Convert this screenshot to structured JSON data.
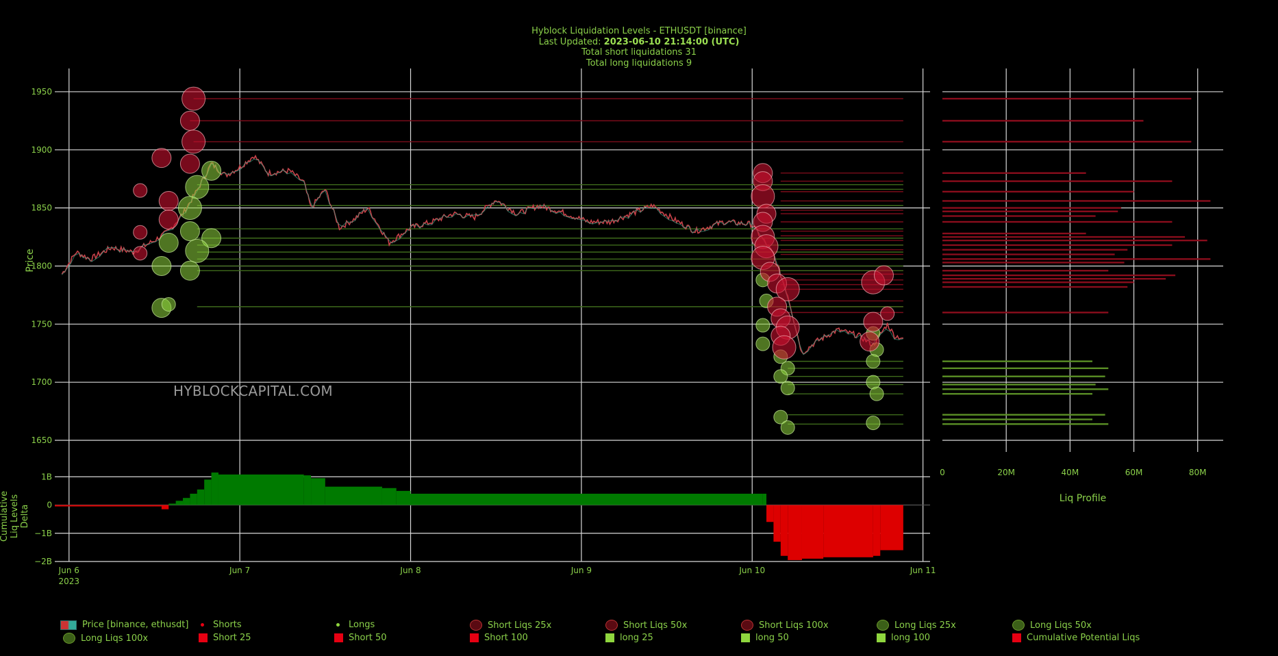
{
  "header": {
    "title": "Hyblock Liquidation Levels - ETHUSDT [binance]",
    "updated_label": "Last Updated:",
    "updated_value": "2023-06-10 21:14:00 (UTC)",
    "short_total": "Total short liquidations 31",
    "long_total": "Total long liquidations 9"
  },
  "watermark": "HYBLOCKCAPITAL.COM",
  "colors": {
    "short": "#c8102e",
    "short_bright": "#e60012",
    "long": "#8fd63e",
    "long_dark": "#4a7a1e",
    "grid": "#d9d9d9",
    "text": "#8bd14a",
    "delta_pos": "#007a00",
    "delta_neg": "#dd0000"
  },
  "chart_data": [
    {
      "type": "line",
      "name": "price",
      "ylabel": "Price",
      "ylim": [
        1640,
        1970
      ],
      "yticks": [
        1650,
        1700,
        1750,
        1800,
        1850,
        1900,
        1950
      ],
      "xlim": [
        "2023-06-05 22:00",
        "2023-06-11 01:00"
      ],
      "xticks": [
        "Jun 6",
        "Jun 7",
        "Jun 8",
        "Jun 9",
        "Jun 10",
        "Jun 11"
      ],
      "xtick_year": "2023",
      "price_path": [
        [
          "2023-06-05 23:00",
          1793
        ],
        [
          "2023-06-06 01:00",
          1812
        ],
        [
          "2023-06-06 03:00",
          1806
        ],
        [
          "2023-06-06 06:00",
          1816
        ],
        [
          "2023-06-06 09:00",
          1812
        ],
        [
          "2023-06-06 12:00",
          1822
        ],
        [
          "2023-06-06 14:00",
          1830
        ],
        [
          "2023-06-06 16:00",
          1845
        ],
        [
          "2023-06-06 18:00",
          1865
        ],
        [
          "2023-06-06 20:00",
          1888
        ],
        [
          "2023-06-06 22:00",
          1878
        ],
        [
          "2023-06-07 00:00",
          1885
        ],
        [
          "2023-06-07 02:00",
          1895
        ],
        [
          "2023-06-07 04:00",
          1880
        ],
        [
          "2023-06-07 07:00",
          1882
        ],
        [
          "2023-06-07 09:00",
          1872
        ],
        [
          "2023-06-07 10:00",
          1850
        ],
        [
          "2023-06-07 12:00",
          1866
        ],
        [
          "2023-06-07 14:00",
          1833
        ],
        [
          "2023-06-07 16:00",
          1840
        ],
        [
          "2023-06-07 18:00",
          1850
        ],
        [
          "2023-06-07 21:00",
          1820
        ],
        [
          "2023-06-08 00:00",
          1833
        ],
        [
          "2023-06-08 03:00",
          1838
        ],
        [
          "2023-06-08 06:00",
          1845
        ],
        [
          "2023-06-08 09:00",
          1842
        ],
        [
          "2023-06-08 12:00",
          1857
        ],
        [
          "2023-06-08 15:00",
          1845
        ],
        [
          "2023-06-08 18:00",
          1852
        ],
        [
          "2023-06-08 21:00",
          1847
        ],
        [
          "2023-06-09 01:00",
          1838
        ],
        [
          "2023-06-09 04:00",
          1838
        ],
        [
          "2023-06-09 07:00",
          1845
        ],
        [
          "2023-06-09 10:00",
          1852
        ],
        [
          "2023-06-09 13:00",
          1840
        ],
        [
          "2023-06-09 16:00",
          1830
        ],
        [
          "2023-06-09 20:00",
          1838
        ],
        [
          "2023-06-10 00:00",
          1836
        ],
        [
          "2023-06-10 03:00",
          1810
        ],
        [
          "2023-06-10 05:00",
          1775
        ],
        [
          "2023-06-10 07:00",
          1725
        ],
        [
          "2023-06-10 09:00",
          1735
        ],
        [
          "2023-06-10 12:00",
          1745
        ],
        [
          "2023-06-10 15:00",
          1740
        ],
        [
          "2023-06-10 17:00",
          1732
        ],
        [
          "2023-06-10 19:00",
          1750
        ],
        [
          "2023-06-10 20:00",
          1740
        ],
        [
          "2023-06-10 21:14",
          1738
        ]
      ],
      "short_liqs": [
        [
          "2023-06-06 17:30",
          1944,
          100
        ],
        [
          "2023-06-06 17:00",
          1925,
          50
        ],
        [
          "2023-06-06 17:30",
          1907,
          100
        ],
        [
          "2023-06-06 13:00",
          1893,
          50
        ],
        [
          "2023-06-06 17:00",
          1888,
          50
        ],
        [
          "2023-06-06 10:00",
          1865,
          25
        ],
        [
          "2023-06-06 14:00",
          1856,
          50
        ],
        [
          "2023-06-06 14:00",
          1840,
          50
        ],
        [
          "2023-06-06 10:00",
          1829,
          25
        ],
        [
          "2023-06-06 10:00",
          1811,
          25
        ],
        [
          "2023-06-10 01:30",
          1880,
          50
        ],
        [
          "2023-06-10 01:30",
          1873,
          50
        ],
        [
          "2023-06-10 01:30",
          1860,
          100
        ],
        [
          "2023-06-10 02:00",
          1845,
          50
        ],
        [
          "2023-06-10 01:30",
          1838,
          50
        ],
        [
          "2023-06-10 01:30",
          1825,
          100
        ],
        [
          "2023-06-10 02:00",
          1817,
          100
        ],
        [
          "2023-06-10 01:30",
          1807,
          100
        ],
        [
          "2023-06-10 02:30",
          1795,
          50
        ],
        [
          "2023-06-10 03:30",
          1785,
          50
        ],
        [
          "2023-06-10 05:00",
          1780,
          100
        ],
        [
          "2023-06-10 03:30",
          1765,
          50
        ],
        [
          "2023-06-10 04:00",
          1755,
          50
        ],
        [
          "2023-06-10 05:00",
          1747,
          100
        ],
        [
          "2023-06-10 04:00",
          1740,
          50
        ],
        [
          "2023-06-10 04:30",
          1730,
          100
        ],
        [
          "2023-06-10 17:00",
          1786,
          100
        ],
        [
          "2023-06-10 18:30",
          1792,
          50
        ],
        [
          "2023-06-10 17:00",
          1752,
          50
        ],
        [
          "2023-06-10 19:00",
          1759,
          25
        ],
        [
          "2023-06-10 16:30",
          1735,
          50
        ]
      ],
      "long_liqs": [
        [
          "2023-06-06 20:00",
          1882,
          50
        ],
        [
          "2023-06-06 18:00",
          1868,
          100
        ],
        [
          "2023-06-06 17:00",
          1850,
          100
        ],
        [
          "2023-06-06 20:00",
          1824,
          50
        ],
        [
          "2023-06-06 17:00",
          1830,
          50
        ],
        [
          "2023-06-06 14:00",
          1820,
          50
        ],
        [
          "2023-06-06 18:00",
          1813,
          100
        ],
        [
          "2023-06-06 13:00",
          1800,
          50
        ],
        [
          "2023-06-06 17:00",
          1796,
          50
        ],
        [
          "2023-06-06 13:00",
          1764,
          50
        ],
        [
          "2023-06-06 14:00",
          1767,
          25
        ],
        [
          "2023-06-10 01:30",
          1788,
          25
        ],
        [
          "2023-06-10 02:00",
          1770,
          25
        ],
        [
          "2023-06-10 01:30",
          1749,
          25
        ],
        [
          "2023-06-10 01:30",
          1733,
          25
        ],
        [
          "2023-06-10 04:00",
          1722,
          25
        ],
        [
          "2023-06-10 05:00",
          1712,
          25
        ],
        [
          "2023-06-10 04:00",
          1705,
          25
        ],
        [
          "2023-06-10 05:00",
          1695,
          25
        ],
        [
          "2023-06-10 04:00",
          1670,
          25
        ],
        [
          "2023-06-10 05:00",
          1661,
          25
        ],
        [
          "2023-06-10 17:00",
          1742,
          25
        ],
        [
          "2023-06-10 17:30",
          1728,
          25
        ],
        [
          "2023-06-10 17:00",
          1718,
          25
        ],
        [
          "2023-06-10 17:00",
          1700,
          25
        ],
        [
          "2023-06-10 17:30",
          1690,
          25
        ],
        [
          "2023-06-10 17:00",
          1665,
          25
        ]
      ],
      "short_levels": [
        1944,
        1925,
        1907,
        1880,
        1873,
        1864,
        1856,
        1848,
        1845,
        1838,
        1830,
        1826,
        1822,
        1818,
        1814,
        1810,
        1806,
        1796,
        1793,
        1788,
        1784,
        1780,
        1770,
        1765,
        1760
      ],
      "long_levels": [
        1870,
        1866,
        1852,
        1832,
        1824,
        1818,
        1812,
        1806,
        1800,
        1796,
        1765,
        1718,
        1712,
        1705,
        1698,
        1690,
        1672,
        1664
      ],
      "short_level_start": {
        "1944": "2023-06-06 17:30",
        "1925": "2023-06-06 17:00",
        "1907": "2023-06-06 17:30"
      }
    },
    {
      "type": "area",
      "name": "cumulative",
      "ylabel": "Cumulative Liq Levels Delta",
      "ylim": [
        -2,
        1.2
      ],
      "yticks": [
        -2,
        -1,
        0,
        1
      ],
      "ytick_labels": [
        "−2B",
        "−1B",
        "0",
        "1B"
      ],
      "series": [
        [
          "2023-06-05 22:00",
          -0.05
        ],
        [
          "2023-06-06 12:00",
          -0.05
        ],
        [
          "2023-06-06 13:00",
          -0.15
        ],
        [
          "2023-06-06 14:00",
          0.05
        ],
        [
          "2023-06-06 15:00",
          0.15
        ],
        [
          "2023-06-06 16:00",
          0.25
        ],
        [
          "2023-06-06 17:00",
          0.4
        ],
        [
          "2023-06-06 18:00",
          0.55
        ],
        [
          "2023-06-06 19:00",
          0.9
        ],
        [
          "2023-06-06 20:00",
          1.15
        ],
        [
          "2023-06-06 21:00",
          1.08
        ],
        [
          "2023-06-07 09:00",
          1.05
        ],
        [
          "2023-06-07 10:00",
          0.95
        ],
        [
          "2023-06-07 12:00",
          0.65
        ],
        [
          "2023-06-07 20:00",
          0.6
        ],
        [
          "2023-06-07 22:00",
          0.5
        ],
        [
          "2023-06-08 00:00",
          0.4
        ],
        [
          "2023-06-10 01:30",
          0.4
        ],
        [
          "2023-06-10 02:00",
          -0.6
        ],
        [
          "2023-06-10 03:00",
          -1.3
        ],
        [
          "2023-06-10 04:00",
          -1.8
        ],
        [
          "2023-06-10 05:00",
          -1.95
        ],
        [
          "2023-06-10 07:00",
          -1.9
        ],
        [
          "2023-06-10 10:00",
          -1.85
        ],
        [
          "2023-06-10 17:00",
          -1.8
        ],
        [
          "2023-06-10 18:00",
          -1.6
        ],
        [
          "2023-06-10 21:14",
          -1.55
        ]
      ]
    },
    {
      "type": "bar",
      "name": "liq_profile",
      "xlabel": "Liq Profile",
      "xlim": [
        0,
        88
      ],
      "xticks": [
        0,
        20,
        40,
        60,
        80
      ],
      "xtick_labels": [
        "0",
        "20M",
        "40M",
        "60M",
        "80M"
      ],
      "short_bars": [
        [
          1944,
          78
        ],
        [
          1925,
          63
        ],
        [
          1907,
          78
        ],
        [
          1880,
          45
        ],
        [
          1873,
          72
        ],
        [
          1864,
          60
        ],
        [
          1856,
          84
        ],
        [
          1850,
          56
        ],
        [
          1847,
          55
        ],
        [
          1843,
          48
        ],
        [
          1838,
          72
        ],
        [
          1828,
          45
        ],
        [
          1825,
          76
        ],
        [
          1822,
          83
        ],
        [
          1818,
          72
        ],
        [
          1814,
          58
        ],
        [
          1810,
          54
        ],
        [
          1806,
          84
        ],
        [
          1803,
          57
        ],
        [
          1796,
          52
        ],
        [
          1792,
          73
        ],
        [
          1789,
          70
        ],
        [
          1786,
          60
        ],
        [
          1782,
          58
        ],
        [
          1760,
          52
        ]
      ],
      "long_bars": [
        [
          1718,
          47
        ],
        [
          1712,
          52
        ],
        [
          1705,
          51
        ],
        [
          1698,
          48
        ],
        [
          1694,
          52
        ],
        [
          1690,
          47
        ],
        [
          1672,
          51
        ],
        [
          1668,
          47
        ],
        [
          1664,
          52
        ]
      ]
    }
  ],
  "legend": {
    "row1": [
      "Price [binance, ethusdt]",
      "Shorts",
      "Longs",
      "Short Liqs 25x",
      "Short Liqs 50x",
      "Short Liqs 100x",
      "Long Liqs 25x",
      "Long Liqs 50x"
    ],
    "row2": [
      "Long Liqs 100x",
      "Short 25",
      "Short 50",
      "Short 100",
      "long 25",
      "long 50",
      "long 100",
      "Cumulative Potential Liqs"
    ]
  }
}
